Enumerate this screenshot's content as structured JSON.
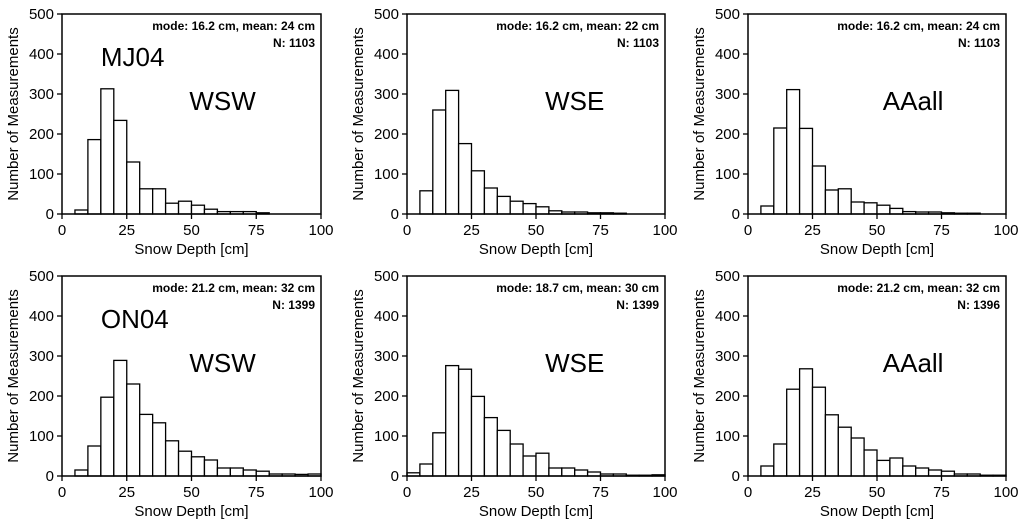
{
  "chart_data": [
    {
      "type": "bar",
      "xlabel": "Snow Depth [cm]",
      "ylabel": "Number of Measurements",
      "xlim": [
        0,
        100
      ],
      "ylim": [
        0,
        500
      ],
      "xticks": [
        0,
        25,
        50,
        75,
        100
      ],
      "yticks": [
        0,
        100,
        200,
        300,
        400,
        500
      ],
      "stats_line1": "mode: 16.2 cm, mean: 24 cm",
      "stats_line2": "N: 1103",
      "site": "MJ04",
      "tag": "WSW",
      "bin_width": 5,
      "bin_starts": [
        5,
        10,
        15,
        20,
        25,
        30,
        35,
        40,
        45,
        50,
        55,
        60,
        65,
        70,
        75
      ],
      "values": [
        10,
        186,
        313,
        234,
        130,
        63,
        63,
        27,
        32,
        22,
        12,
        6,
        6,
        6,
        3
      ]
    },
    {
      "type": "bar",
      "xlabel": "Snow Depth [cm]",
      "ylabel": "Number of Measurements",
      "xlim": [
        0,
        100
      ],
      "ylim": [
        0,
        500
      ],
      "xticks": [
        0,
        25,
        50,
        75,
        100
      ],
      "yticks": [
        0,
        100,
        200,
        300,
        400,
        500
      ],
      "stats_line1": "mode: 16.2 cm, mean: 22 cm",
      "stats_line2": "N: 1103",
      "tag": "WSE",
      "bin_width": 5,
      "bin_starts": [
        5,
        10,
        15,
        20,
        25,
        30,
        35,
        40,
        45,
        50,
        55,
        60,
        65,
        70,
        75,
        80
      ],
      "values": [
        58,
        260,
        309,
        176,
        108,
        65,
        44,
        32,
        26,
        18,
        8,
        5,
        5,
        3,
        3,
        2
      ]
    },
    {
      "type": "bar",
      "xlabel": "Snow Depth [cm]",
      "ylabel": "Number of Measurements",
      "xlim": [
        0,
        100
      ],
      "ylim": [
        0,
        500
      ],
      "xticks": [
        0,
        25,
        50,
        75,
        100
      ],
      "yticks": [
        0,
        100,
        200,
        300,
        400,
        500
      ],
      "stats_line1": "mode: 16.2 cm, mean: 24 cm",
      "stats_line2": "N: 1103",
      "tag": "AAall",
      "bin_width": 5,
      "bin_starts": [
        5,
        10,
        15,
        20,
        25,
        30,
        35,
        40,
        45,
        50,
        55,
        60,
        65,
        70,
        75,
        80,
        85
      ],
      "values": [
        20,
        215,
        311,
        214,
        120,
        60,
        63,
        30,
        28,
        22,
        14,
        6,
        5,
        5,
        3,
        2,
        2
      ]
    },
    {
      "type": "bar",
      "xlabel": "Snow Depth [cm]",
      "ylabel": "Number of Measurements",
      "xlim": [
        0,
        100
      ],
      "ylim": [
        0,
        500
      ],
      "xticks": [
        0,
        25,
        50,
        75,
        100
      ],
      "yticks": [
        0,
        100,
        200,
        300,
        400,
        500
      ],
      "stats_line1": "mode: 21.2 cm, mean: 32 cm",
      "stats_line2": "N: 1399",
      "site": "ON04",
      "tag": "WSW",
      "bin_width": 5,
      "bin_starts": [
        5,
        10,
        15,
        20,
        25,
        30,
        35,
        40,
        45,
        50,
        55,
        60,
        65,
        70,
        75,
        80,
        85,
        90,
        95
      ],
      "values": [
        15,
        75,
        197,
        289,
        230,
        154,
        133,
        88,
        62,
        48,
        40,
        20,
        20,
        15,
        12,
        5,
        5,
        4,
        5
      ]
    },
    {
      "type": "bar",
      "xlabel": "Snow Depth [cm]",
      "ylabel": "Number of Measurements",
      "xlim": [
        0,
        100
      ],
      "ylim": [
        0,
        500
      ],
      "xticks": [
        0,
        25,
        50,
        75,
        100
      ],
      "yticks": [
        0,
        100,
        200,
        300,
        400,
        500
      ],
      "stats_line1": "mode: 18.7 cm, mean: 30 cm",
      "stats_line2": "N: 1399",
      "tag": "WSE",
      "bin_width": 5,
      "bin_starts": [
        0,
        5,
        10,
        15,
        20,
        25,
        30,
        35,
        40,
        45,
        50,
        55,
        60,
        65,
        70,
        75,
        80,
        85,
        90,
        95
      ],
      "values": [
        8,
        30,
        108,
        276,
        267,
        199,
        146,
        114,
        80,
        50,
        57,
        20,
        20,
        15,
        10,
        5,
        5,
        2,
        2,
        3
      ]
    },
    {
      "type": "bar",
      "xlabel": "Snow Depth [cm]",
      "ylabel": "Number of Measurements",
      "xlim": [
        0,
        100
      ],
      "ylim": [
        0,
        500
      ],
      "xticks": [
        0,
        25,
        50,
        75,
        100
      ],
      "yticks": [
        0,
        100,
        200,
        300,
        400,
        500
      ],
      "stats_line1": "mode: 21.2 cm, mean: 32 cm",
      "stats_line2": "N: 1396",
      "tag": "AAall",
      "bin_width": 5,
      "bin_starts": [
        5,
        10,
        15,
        20,
        25,
        30,
        35,
        40,
        45,
        50,
        55,
        60,
        65,
        70,
        75,
        80,
        85,
        90,
        95
      ],
      "values": [
        25,
        80,
        217,
        268,
        222,
        153,
        122,
        95,
        65,
        39,
        45,
        25,
        20,
        15,
        12,
        5,
        5,
        2,
        2
      ]
    }
  ]
}
